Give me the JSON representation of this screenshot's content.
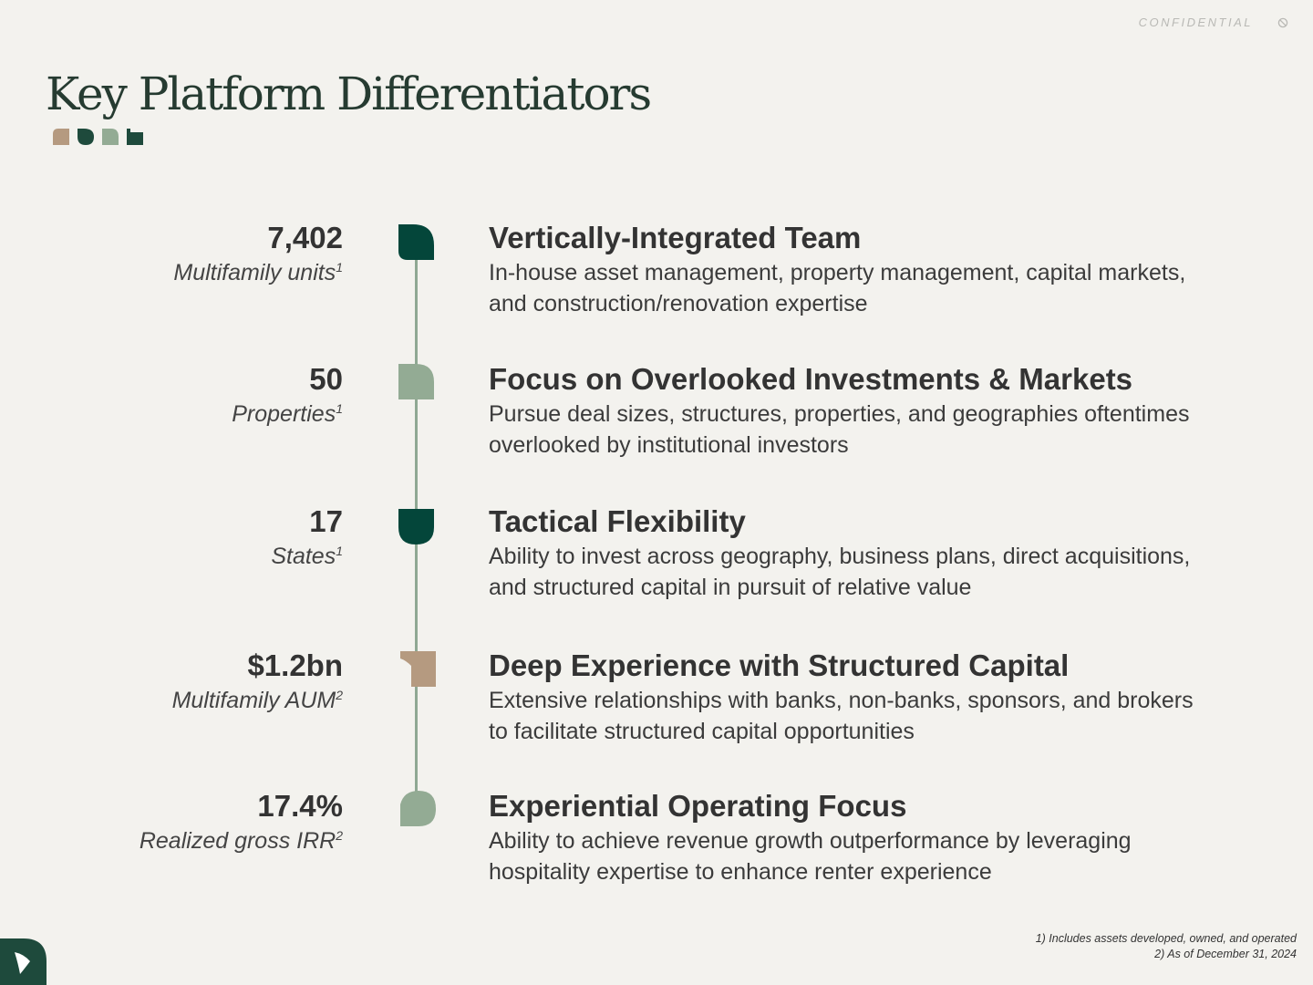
{
  "header": {
    "confidential": "CONFIDENTIAL",
    "confidential_icon": "no-entry-icon"
  },
  "title": "Key Platform Differentiators",
  "colors": {
    "dark_green": "#04463a",
    "sage": "#93ab94",
    "tan": "#b59a80",
    "line": "#8fa893"
  },
  "items": [
    {
      "value": "7,402",
      "label": "Multifamily units",
      "note": "1",
      "heading": "Vertically-Integrated Team",
      "text": "In-house asset management, property management, capital markets, and construction/renovation expertise",
      "marker_icon": "leaf-dark-green-icon"
    },
    {
      "value": "50",
      "label": "Properties",
      "note": "1",
      "heading": "Focus on Overlooked Investments & Markets",
      "text": "Pursue deal sizes, structures, properties, and geographies oftentimes overlooked by institutional investors",
      "marker_icon": "arch-sage-icon"
    },
    {
      "value": "17",
      "label": "States",
      "note": "1",
      "heading": "Tactical Flexibility",
      "text": "Ability to invest across geography, business plans, direct acquisitions, and structured capital in pursuit of relative value",
      "marker_icon": "shield-dark-green-icon"
    },
    {
      "value": "$1.2bn",
      "label": "Multifamily AUM",
      "note": "2",
      "heading": "Deep Experience with Structured Capital",
      "text": "Extensive relationships with banks, non-banks, sponsors, and brokers to facilitate structured capital opportunities",
      "marker_icon": "notch-tan-icon"
    },
    {
      "value": "17.4%",
      "label": "Realized gross IRR",
      "note": "2",
      "heading": "Experiential Operating Focus",
      "text": "Ability to achieve revenue growth outperformance by leveraging hospitality expertise to enhance renter experience",
      "marker_icon": "leaf-sage-icon"
    }
  ],
  "footnotes": [
    "1) Includes assets developed, owned, and operated",
    "2) As of December 31, 2024"
  ],
  "footer": {
    "logo_icon": "brand-logo-icon"
  }
}
